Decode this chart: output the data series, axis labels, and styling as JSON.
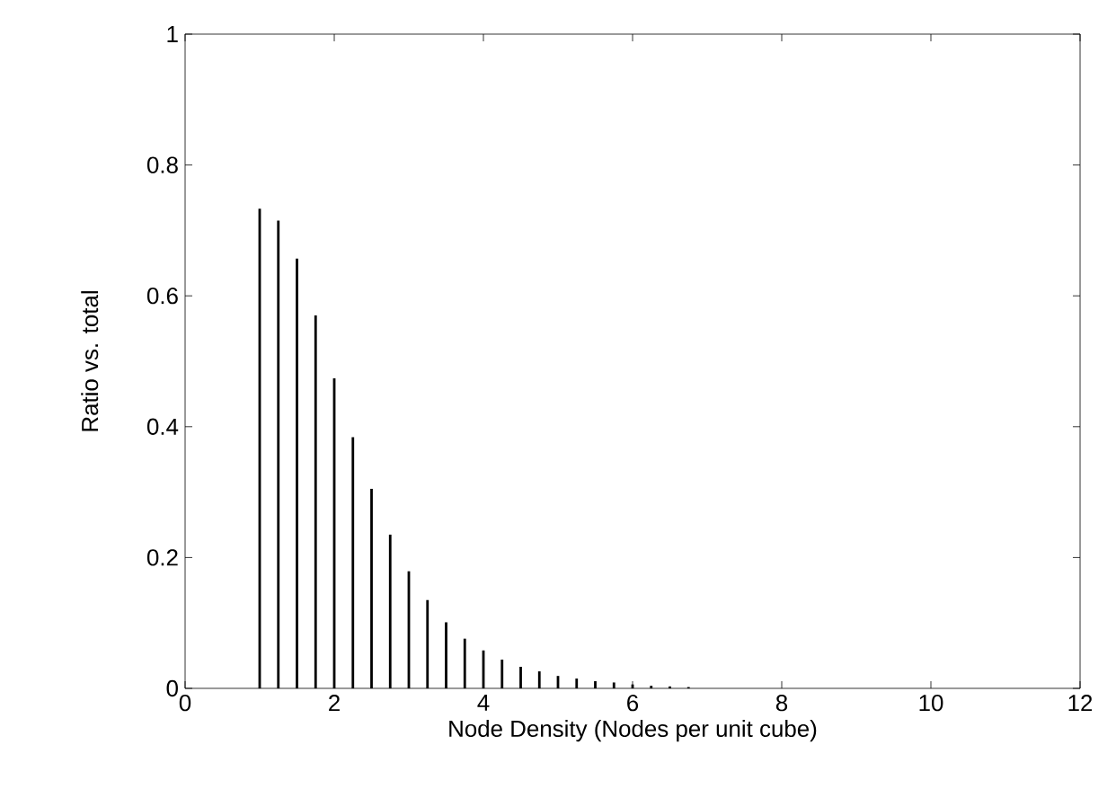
{
  "chart_data": {
    "type": "bar",
    "xlabel": "Node Density (Nodes per unit cube)",
    "ylabel": "Ratio vs. total",
    "x": [
      1.0,
      1.25,
      1.5,
      1.75,
      2.0,
      2.25,
      2.5,
      2.75,
      3.0,
      3.25,
      3.5,
      3.75,
      4.0,
      4.25,
      4.5,
      4.75,
      5.0,
      5.25,
      5.5,
      5.75,
      6.0,
      6.25,
      6.5,
      6.75
    ],
    "values": [
      0.733,
      0.715,
      0.657,
      0.57,
      0.474,
      0.384,
      0.305,
      0.235,
      0.179,
      0.135,
      0.101,
      0.076,
      0.058,
      0.044,
      0.033,
      0.026,
      0.019,
      0.015,
      0.011,
      0.009,
      0.006,
      0.004,
      0.003,
      0.002
    ],
    "color": "#000000",
    "xlim": [
      0,
      12
    ],
    "ylim": [
      0,
      1
    ],
    "xticks": [
      0,
      2,
      4,
      6,
      8,
      10,
      12
    ],
    "yticks": [
      0,
      0.2,
      0.4,
      0.6,
      0.8,
      1
    ],
    "grid": false
  }
}
